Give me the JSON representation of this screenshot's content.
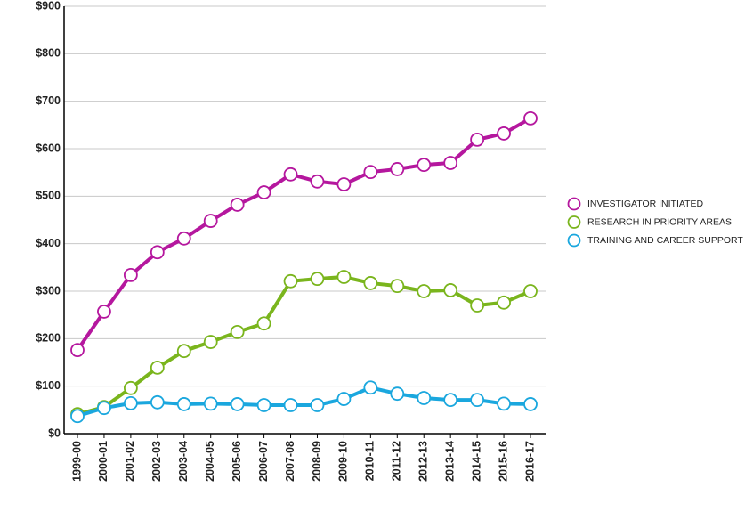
{
  "chart_data": {
    "type": "line",
    "categories": [
      "1999-00",
      "2000-01",
      "2001-02",
      "2002-03",
      "2003-04",
      "2004-05",
      "2005-06",
      "2006-07",
      "2007-08",
      "2008-09",
      "2009-10",
      "2010-11",
      "2011-12",
      "2012-13",
      "2013-14",
      "2014-15",
      "2015-16",
      "2016-17"
    ],
    "series": [
      {
        "name": "INVESTIGATOR INITIATED",
        "color": "#b5179e",
        "values": [
          176,
          257,
          334,
          382,
          411,
          448,
          482,
          508,
          546,
          531,
          525,
          551,
          557,
          566,
          570,
          619,
          632,
          664
        ]
      },
      {
        "name": "RESEARCH IN PRIORITY AREAS",
        "color": "#7ab51d",
        "values": [
          41,
          56,
          96,
          139,
          174,
          193,
          214,
          232,
          321,
          326,
          330,
          317,
          311,
          300,
          302,
          270,
          276,
          300
        ]
      },
      {
        "name": "TRAINING AND CAREER SUPPORT",
        "color": "#1aa7de",
        "values": [
          37,
          54,
          64,
          66,
          62,
          63,
          62,
          60,
          60,
          60,
          73,
          97,
          84,
          75,
          71,
          71,
          63,
          62
        ]
      }
    ],
    "ylim": [
      0,
      900
    ],
    "yticks": [
      {
        "value": 0,
        "label": "$0"
      },
      {
        "value": 100,
        "label": "$100"
      },
      {
        "value": 200,
        "label": "$200"
      },
      {
        "value": 300,
        "label": "$300"
      },
      {
        "value": 400,
        "label": "$400"
      },
      {
        "value": 500,
        "label": "$500"
      },
      {
        "value": 600,
        "label": "$600"
      },
      {
        "value": 700,
        "label": "$700"
      },
      {
        "value": 800,
        "label": "$800"
      },
      {
        "value": 900,
        "label": "$900"
      }
    ],
    "grid": true,
    "legend": "right"
  }
}
